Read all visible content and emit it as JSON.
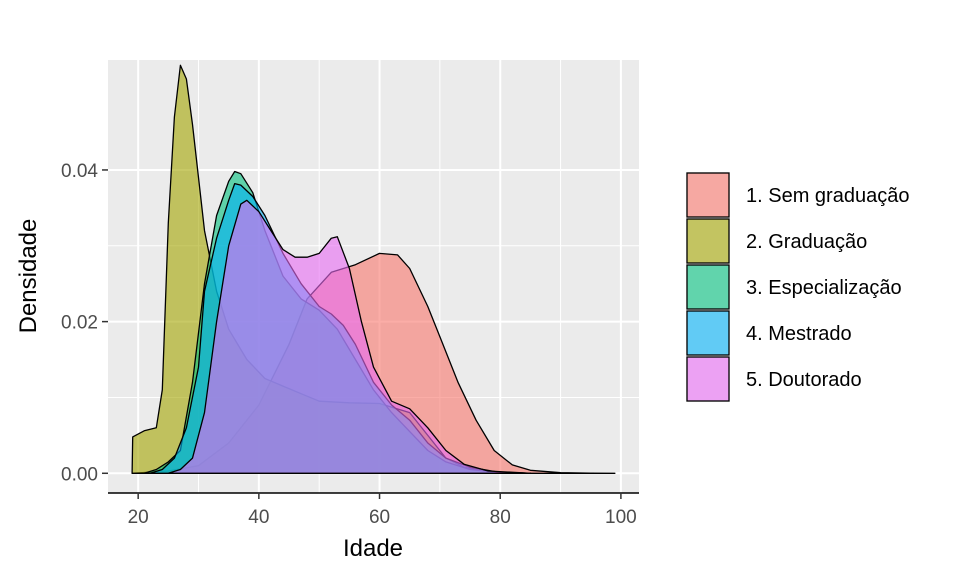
{
  "chart_data": {
    "type": "area",
    "xlabel": "Idade",
    "ylabel": "Densidade",
    "xlim": [
      15,
      103
    ],
    "ylim": [
      -0.0026,
      0.0545
    ],
    "x_ticks": [
      20,
      40,
      60,
      80,
      100
    ],
    "x_tick_labels": [
      "20",
      "40",
      "60",
      "80",
      "100"
    ],
    "y_ticks": [
      0.0,
      0.02,
      0.04
    ],
    "y_tick_labels": [
      "0.00",
      "0.02",
      "0.04"
    ],
    "grid": true,
    "legend_position": "right",
    "series": [
      {
        "name": "1. Sem graduação",
        "color": "#F8766D",
        "points": [
          [
            19,
            0
          ],
          [
            21,
            0.0001
          ],
          [
            25,
            0.0003
          ],
          [
            30,
            0.001
          ],
          [
            35,
            0.004
          ],
          [
            40,
            0.009
          ],
          [
            45,
            0.017
          ],
          [
            48,
            0.023
          ],
          [
            52,
            0.0265
          ],
          [
            56,
            0.0275
          ],
          [
            60,
            0.029
          ],
          [
            63,
            0.0288
          ],
          [
            65,
            0.027
          ],
          [
            68,
            0.022
          ],
          [
            70,
            0.018
          ],
          [
            73,
            0.012
          ],
          [
            76,
            0.007
          ],
          [
            79,
            0.003
          ],
          [
            82,
            0.0011
          ],
          [
            85,
            0.0004
          ],
          [
            90,
            8e-05
          ],
          [
            95,
            2e-05
          ],
          [
            99,
            0
          ]
        ]
      },
      {
        "name": "2. Graduação",
        "color": "#A3A500",
        "points": [
          [
            19,
            0
          ],
          [
            19.1,
            0.0048
          ],
          [
            21,
            0.0056
          ],
          [
            23,
            0.006
          ],
          [
            24,
            0.011
          ],
          [
            25,
            0.033
          ],
          [
            26,
            0.047
          ],
          [
            27,
            0.0538
          ],
          [
            28,
            0.052
          ],
          [
            29,
            0.046
          ],
          [
            30,
            0.039
          ],
          [
            31,
            0.032
          ],
          [
            33,
            0.024
          ],
          [
            35,
            0.019
          ],
          [
            38,
            0.015
          ],
          [
            41,
            0.0125
          ],
          [
            44,
            0.0115
          ],
          [
            47,
            0.0105
          ],
          [
            50,
            0.0095
          ],
          [
            55,
            0.0093
          ],
          [
            60,
            0.0092
          ],
          [
            65,
            0.008
          ],
          [
            68,
            0.005
          ],
          [
            71,
            0.002
          ],
          [
            74,
            0.0008
          ],
          [
            78,
            0.0002
          ],
          [
            85,
            0
          ]
        ]
      },
      {
        "name": "3. Especialização",
        "color": "#00BF7D",
        "points": [
          [
            21,
            0
          ],
          [
            23,
            0.0005
          ],
          [
            25,
            0.0015
          ],
          [
            27,
            0.003
          ],
          [
            29,
            0.012
          ],
          [
            31,
            0.025
          ],
          [
            33,
            0.034
          ],
          [
            35,
            0.0385
          ],
          [
            36,
            0.0398
          ],
          [
            37,
            0.0395
          ],
          [
            39,
            0.037
          ],
          [
            41,
            0.032
          ],
          [
            44,
            0.026
          ],
          [
            47,
            0.023
          ],
          [
            50,
            0.0215
          ],
          [
            53,
            0.019
          ],
          [
            56,
            0.015
          ],
          [
            59,
            0.011
          ],
          [
            62,
            0.008
          ],
          [
            65,
            0.0055
          ],
          [
            68,
            0.003
          ],
          [
            71,
            0.0015
          ],
          [
            75,
            0.0005
          ],
          [
            80,
            0.0001
          ],
          [
            85,
            0
          ]
        ]
      },
      {
        "name": "4. Mestrado",
        "color": "#00B0F6",
        "points": [
          [
            22,
            0
          ],
          [
            24,
            0.0005
          ],
          [
            26,
            0.002
          ],
          [
            28,
            0.006
          ],
          [
            30,
            0.014
          ],
          [
            31,
            0.024
          ],
          [
            33,
            0.031
          ],
          [
            35,
            0.036
          ],
          [
            36,
            0.0382
          ],
          [
            37,
            0.038
          ],
          [
            39,
            0.0365
          ],
          [
            41,
            0.034
          ],
          [
            44,
            0.029
          ],
          [
            47,
            0.025
          ],
          [
            50,
            0.022
          ],
          [
            52,
            0.021
          ],
          [
            54,
            0.0195
          ],
          [
            56,
            0.017
          ],
          [
            59,
            0.012
          ],
          [
            62,
            0.009
          ],
          [
            65,
            0.007
          ],
          [
            68,
            0.004
          ],
          [
            71,
            0.002
          ],
          [
            75,
            0.0008
          ],
          [
            80,
            0.0001
          ],
          [
            85,
            0
          ]
        ]
      },
      {
        "name": "5. Doutorado",
        "color": "#E76BF3",
        "points": [
          [
            25,
            0
          ],
          [
            27,
            0.0005
          ],
          [
            29,
            0.002
          ],
          [
            31,
            0.008
          ],
          [
            33,
            0.02
          ],
          [
            35,
            0.03
          ],
          [
            37,
            0.0355
          ],
          [
            38,
            0.036
          ],
          [
            40,
            0.0345
          ],
          [
            42,
            0.032
          ],
          [
            44,
            0.0295
          ],
          [
            46,
            0.0285
          ],
          [
            48,
            0.0285
          ],
          [
            50,
            0.029
          ],
          [
            52,
            0.031
          ],
          [
            53,
            0.0312
          ],
          [
            55,
            0.027
          ],
          [
            57,
            0.02
          ],
          [
            59,
            0.014
          ],
          [
            62,
            0.0095
          ],
          [
            65,
            0.0085
          ],
          [
            68,
            0.006
          ],
          [
            71,
            0.003
          ],
          [
            74,
            0.0012
          ],
          [
            78,
            0.0003
          ],
          [
            85,
            0
          ]
        ]
      }
    ]
  }
}
